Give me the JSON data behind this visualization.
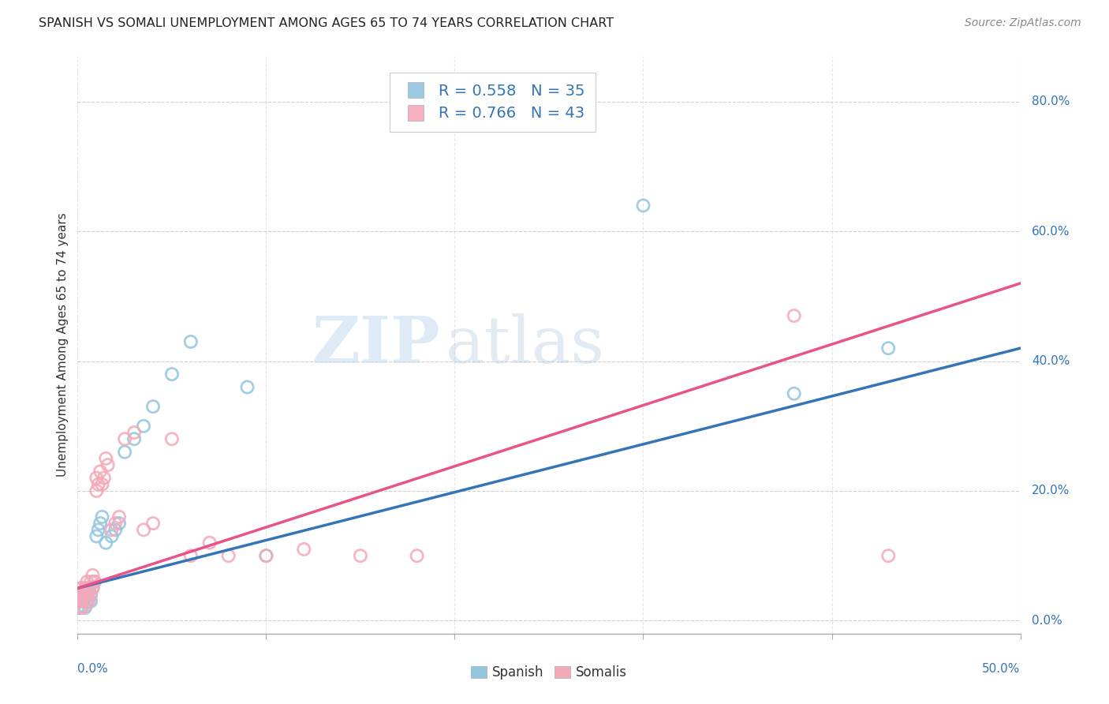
{
  "title": "SPANISH VS SOMALI UNEMPLOYMENT AMONG AGES 65 TO 74 YEARS CORRELATION CHART",
  "source": "Source: ZipAtlas.com",
  "ylabel": "Unemployment Among Ages 65 to 74 years",
  "ytick_labels": [
    "0.0%",
    "20.0%",
    "40.0%",
    "60.0%",
    "80.0%"
  ],
  "ytick_values": [
    0.0,
    0.2,
    0.4,
    0.6,
    0.8
  ],
  "xtick_labels": [
    "0.0%",
    "50.0%"
  ],
  "xtick_positions": [
    0.0,
    0.5
  ],
  "xlim": [
    0.0,
    0.5
  ],
  "ylim": [
    -0.02,
    0.87
  ],
  "spanish_color": "#92c5de",
  "somali_color": "#f4a9b8",
  "spanish_line_color": "#3474b7",
  "somali_line_color": "#e8538a",
  "legend_R_spanish": "R = 0.558",
  "legend_N_spanish": "N = 35",
  "legend_R_somali": "R = 0.766",
  "legend_N_somali": "N = 43",
  "spanish_x": [
    0.0,
    0.001,
    0.001,
    0.002,
    0.002,
    0.003,
    0.003,
    0.004,
    0.004,
    0.005,
    0.005,
    0.006,
    0.007,
    0.007,
    0.008,
    0.009,
    0.01,
    0.011,
    0.012,
    0.013,
    0.015,
    0.018,
    0.02,
    0.022,
    0.025,
    0.03,
    0.035,
    0.04,
    0.05,
    0.06,
    0.09,
    0.1,
    0.3,
    0.38,
    0.43
  ],
  "spanish_y": [
    0.02,
    0.03,
    0.04,
    0.02,
    0.05,
    0.03,
    0.04,
    0.02,
    0.05,
    0.04,
    0.03,
    0.05,
    0.04,
    0.03,
    0.05,
    0.06,
    0.13,
    0.14,
    0.15,
    0.16,
    0.12,
    0.13,
    0.14,
    0.15,
    0.26,
    0.28,
    0.3,
    0.33,
    0.38,
    0.43,
    0.36,
    0.1,
    0.64,
    0.35,
    0.42
  ],
  "somali_x": [
    0.0,
    0.001,
    0.001,
    0.002,
    0.002,
    0.003,
    0.003,
    0.004,
    0.004,
    0.005,
    0.005,
    0.006,
    0.006,
    0.007,
    0.007,
    0.008,
    0.008,
    0.009,
    0.01,
    0.01,
    0.011,
    0.012,
    0.013,
    0.014,
    0.015,
    0.016,
    0.018,
    0.02,
    0.022,
    0.025,
    0.03,
    0.035,
    0.04,
    0.05,
    0.06,
    0.07,
    0.08,
    0.1,
    0.12,
    0.15,
    0.18,
    0.38,
    0.43
  ],
  "somali_y": [
    0.03,
    0.02,
    0.04,
    0.03,
    0.05,
    0.04,
    0.02,
    0.05,
    0.03,
    0.04,
    0.06,
    0.05,
    0.03,
    0.04,
    0.06,
    0.05,
    0.07,
    0.06,
    0.2,
    0.22,
    0.21,
    0.23,
    0.21,
    0.22,
    0.25,
    0.24,
    0.14,
    0.15,
    0.16,
    0.28,
    0.29,
    0.14,
    0.15,
    0.28,
    0.1,
    0.12,
    0.1,
    0.1,
    0.11,
    0.1,
    0.1,
    0.47,
    0.1
  ],
  "watermark_part1": "ZIP",
  "watermark_part2": "atlas",
  "background_color": "#ffffff",
  "grid_color": "#d0d0d0",
  "grid_style": "--"
}
